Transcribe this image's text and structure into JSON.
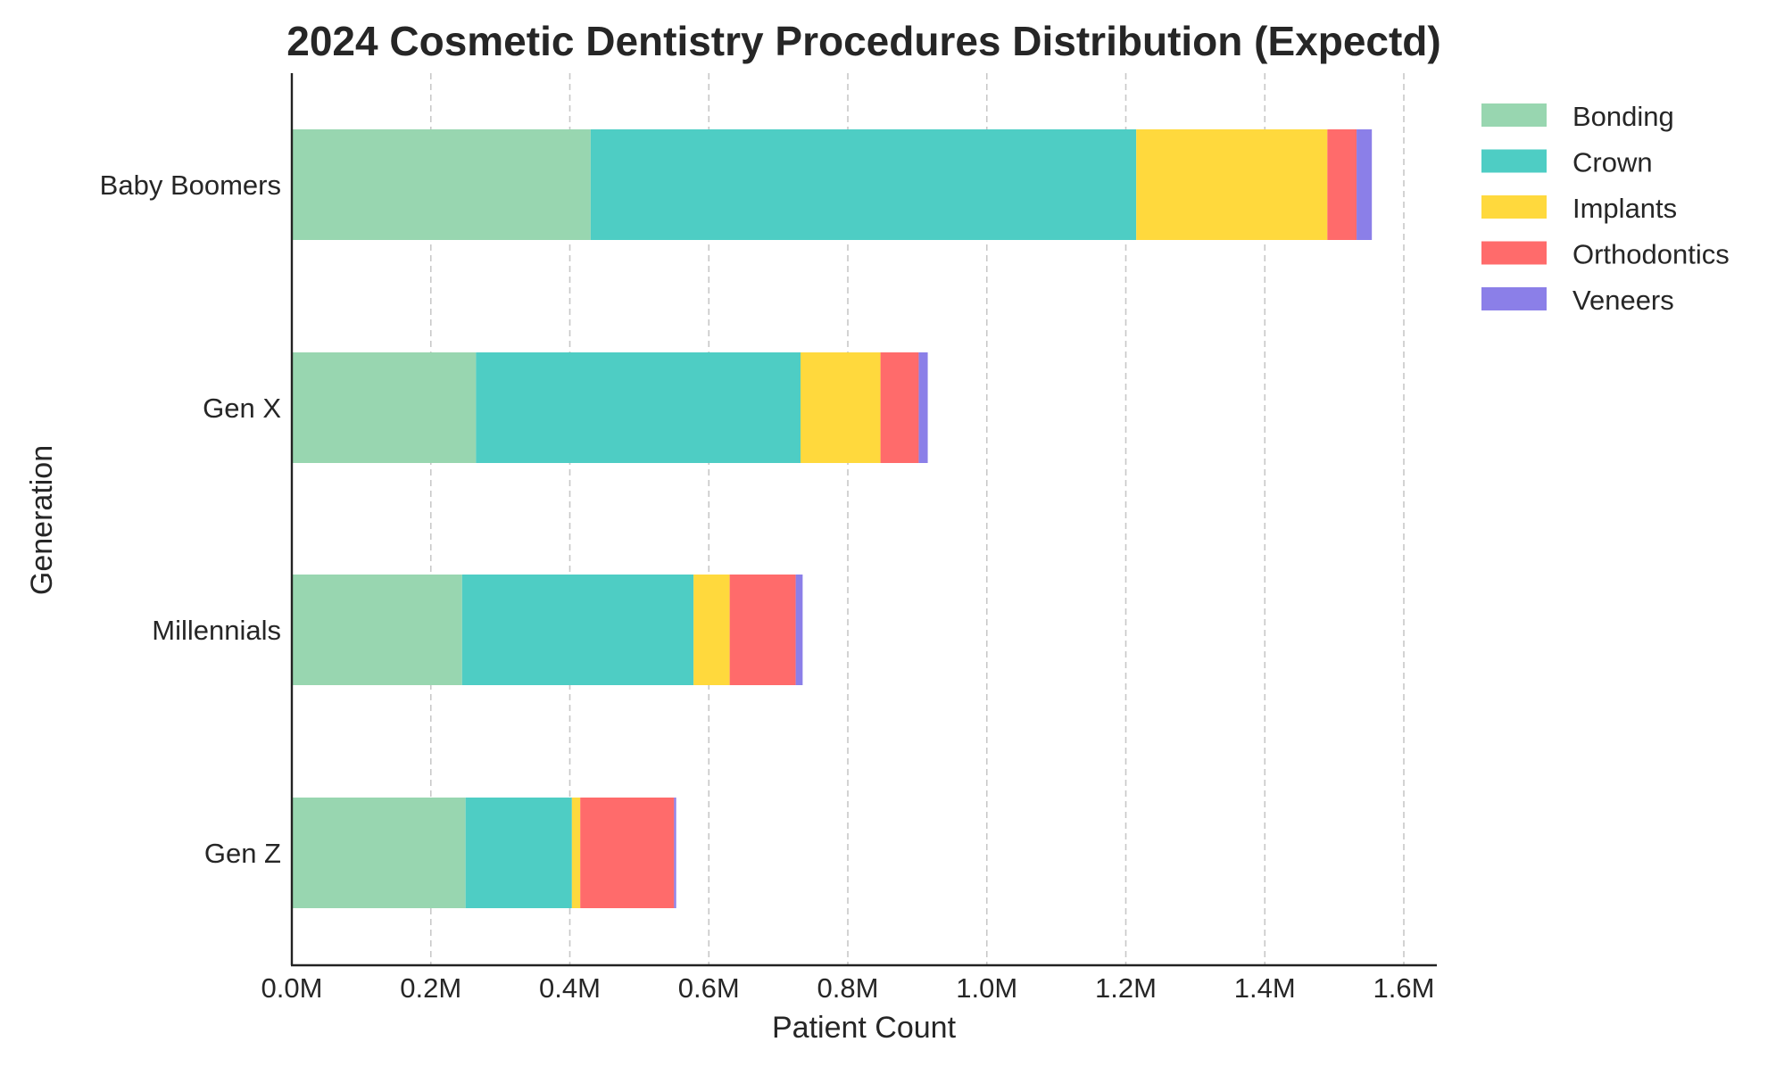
{
  "chart_data": {
    "type": "bar",
    "orientation": "horizontal",
    "stacked": true,
    "title": "2024 Cosmetic Dentistry Procedures Distribution (Expectd)",
    "xlabel": "Patient Count",
    "ylabel": "Generation",
    "xlim": [
      0,
      1.6
    ],
    "x_unit": "M",
    "x_ticks": [
      "0.0M",
      "0.2M",
      "0.4M",
      "0.6M",
      "0.8M",
      "1.0M",
      "1.2M",
      "1.4M",
      "1.6M"
    ],
    "x_tick_values": [
      0,
      0.2,
      0.4,
      0.6,
      0.8,
      1.0,
      1.2,
      1.4,
      1.6
    ],
    "categories": [
      "Baby Boomers",
      "Gen X",
      "Millennials",
      "Gen Z"
    ],
    "grid": "vertical dashed",
    "legend_position": "right",
    "series": [
      {
        "name": "Bonding",
        "color": "#98d6b0",
        "values": [
          0.43,
          0.265,
          0.245,
          0.25
        ]
      },
      {
        "name": "Crown",
        "color": "#4ecdc4",
        "values": [
          0.785,
          0.467,
          0.333,
          0.153
        ]
      },
      {
        "name": "Implants",
        "color": "#ffd93d",
        "values": [
          0.275,
          0.115,
          0.052,
          0.012
        ]
      },
      {
        "name": "Orthodontics",
        "color": "#ff6b6b",
        "values": [
          0.042,
          0.055,
          0.095,
          0.135
        ]
      },
      {
        "name": "Veneers",
        "color": "#8b7fe8",
        "values": [
          0.022,
          0.013,
          0.01,
          0.003
        ]
      }
    ]
  }
}
